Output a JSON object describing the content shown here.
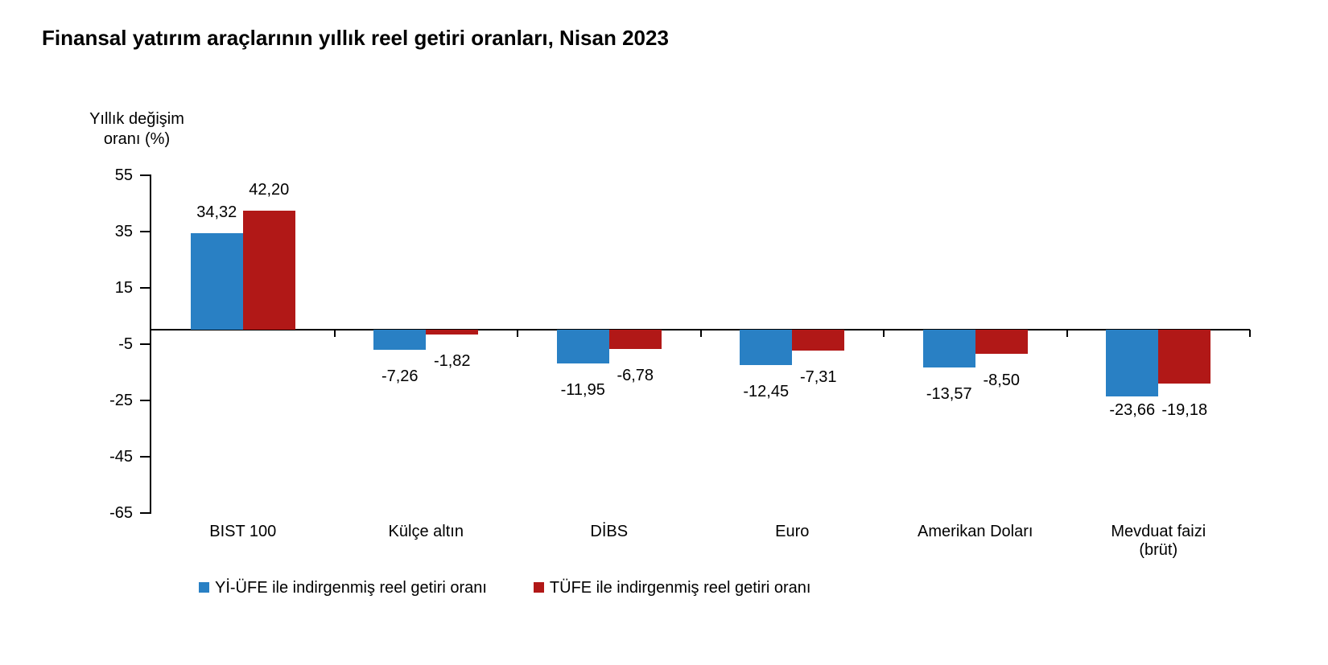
{
  "chart_data": {
    "type": "bar",
    "title": "Finansal yatırım araçlarının yıllık reel getiri oranları, Nisan 2023",
    "ylabel": "Yıllık değişim\noranı (%)",
    "categories": [
      "BIST 100",
      "Külçe altın",
      "DİBS",
      "Euro",
      "Amerikan Doları",
      "Mevduat faizi (brüt)"
    ],
    "series": [
      {
        "name": "Yİ-ÜFE ile indirgenmiş reel getiri oranı",
        "color": "#2980C4",
        "values": [
          34.32,
          -7.26,
          -11.95,
          -12.45,
          -13.57,
          -23.66
        ],
        "value_labels": [
          "34,32",
          "-7,26",
          "-11,95",
          "-12,45",
          "-13,57",
          "-23,66"
        ]
      },
      {
        "name": "TÜFE ile indirgenmiş reel getiri oranı",
        "color": "#B11817",
        "values": [
          42.2,
          -1.82,
          -6.78,
          -7.31,
          -8.5,
          -19.18
        ],
        "value_labels": [
          "42,20",
          "-1,82",
          "-6,78",
          "-7,31",
          "-8,50",
          "-19,18"
        ]
      }
    ],
    "yticks": [
      55,
      35,
      15,
      -5,
      -25,
      -45,
      -65
    ],
    "ytick_labels": [
      "55",
      "35",
      "15",
      "-5",
      "-25",
      "-45",
      "-65"
    ],
    "ylim": [
      -65,
      55
    ],
    "grid": false,
    "legend_position": "bottom",
    "axis_color": "#000000",
    "text_color": "#000000"
  }
}
